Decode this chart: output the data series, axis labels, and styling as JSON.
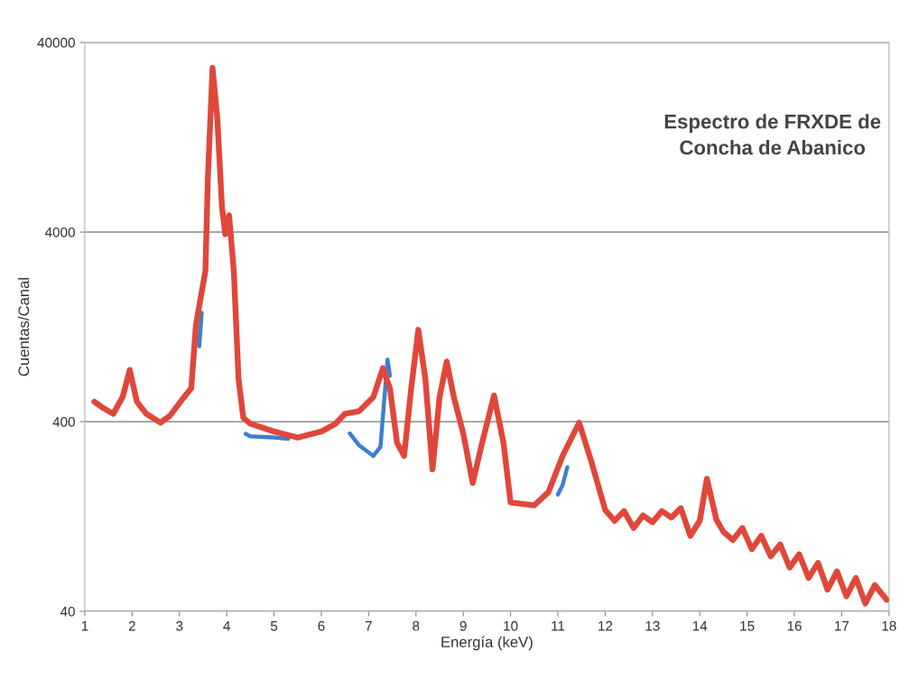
{
  "chart_data": {
    "type": "line",
    "title": "Espectro de FRXDE de\nConcha de Abanico",
    "xlabel": "Energía (keV)",
    "ylabel": "Cuentas/Canal",
    "log": "y",
    "grid": "y",
    "marker": "none",
    "line_style": "solid",
    "xlim": [
      1,
      18
    ],
    "xticks": [
      1,
      2,
      3,
      4,
      5,
      6,
      7,
      8,
      9,
      10,
      11,
      12,
      13,
      14,
      15,
      16,
      17,
      18
    ],
    "ylim": [
      40,
      40000
    ],
    "yticks": [
      40,
      400,
      4000,
      40000
    ],
    "series": [
      {
        "color": "#3d7fd0",
        "x": [
          3.38,
          3.42,
          3.47,
          3.5,
          4.4,
          4.5,
          5.0,
          5.3,
          5.5,
          6.6,
          6.8,
          7.1,
          7.25,
          7.35,
          7.4,
          7.45,
          7.5,
          11.0,
          11.1,
          11.2
        ],
        "values": [
          1150,
          1000,
          1500,
          null,
          345,
          335,
          330,
          325,
          null,
          347,
          300,
          264,
          295,
          600,
          850,
          700,
          null,
          165,
          185,
          230
        ]
      },
      {
        "color": "#e0473a",
        "x": [
          1.2,
          1.4,
          1.6,
          1.8,
          1.95,
          2.1,
          2.3,
          2.6,
          2.8,
          3.1,
          3.25,
          3.35,
          3.55,
          3.6,
          3.7,
          3.8,
          3.9,
          3.97,
          4.05,
          4.15,
          4.25,
          4.35,
          4.5,
          5.0,
          5.5,
          6.0,
          6.3,
          6.5,
          6.8,
          7.1,
          7.3,
          7.45,
          7.6,
          7.75,
          7.9,
          8.05,
          8.2,
          8.35,
          8.5,
          8.65,
          8.8,
          9.0,
          9.2,
          9.4,
          9.65,
          9.85,
          10.0,
          10.5,
          10.8,
          11.1,
          11.45,
          11.7,
          12.0,
          12.2,
          12.4,
          12.6,
          12.8,
          13.0,
          13.2,
          13.4,
          13.6,
          13.8,
          14.0,
          14.15,
          14.35,
          14.5,
          14.7,
          14.9,
          15.1,
          15.3,
          15.5,
          15.7,
          15.9,
          16.1,
          16.3,
          16.5,
          16.7,
          16.9,
          17.1,
          17.3,
          17.5,
          17.7,
          17.95
        ],
        "values": [
          510,
          470,
          440,
          540,
          750,
          510,
          440,
          395,
          430,
          540,
          600,
          1300,
          2500,
          7500,
          29400,
          16100,
          5400,
          3900,
          4900,
          2500,
          670,
          420,
          390,
          355,
          330,
          355,
          390,
          440,
          455,
          540,
          765,
          600,
          310,
          264,
          600,
          1220,
          670,
          224,
          540,
          830,
          540,
          347,
          190,
          310,
          550,
          310,
          150,
          145,
          170,
          264,
          395,
          250,
          137,
          120,
          135,
          110,
          128,
          118,
          135,
          125,
          140,
          100,
          120,
          200,
          122,
          105,
          95,
          110,
          85,
          100,
          78,
          90,
          68,
          80,
          60,
          72,
          52,
          65,
          48,
          60,
          44,
          55,
          46
        ]
      }
    ]
  }
}
